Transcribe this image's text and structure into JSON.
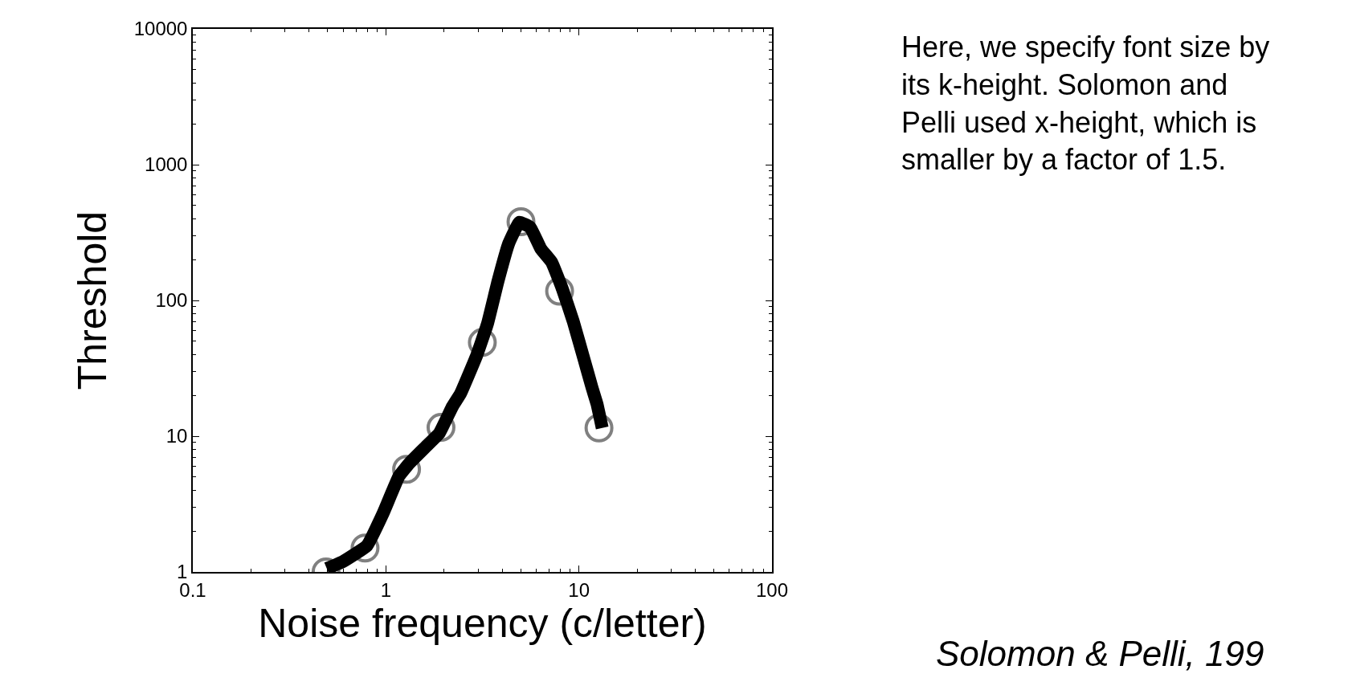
{
  "chart_data": {
    "type": "line",
    "xlabel": "Noise frequency (c/letter)",
    "ylabel": "Threshold",
    "log": "xy",
    "legend": false,
    "xlim": [
      0.1,
      100
    ],
    "xticks": [
      0.1,
      1,
      10,
      100
    ],
    "ylim": [
      1,
      10000
    ],
    "yticks": [
      1,
      10,
      100,
      1000,
      10000
    ],
    "series": [
      {
        "type": "scatter",
        "marker": "circle",
        "color": "#808080",
        "x": [
          0.49,
          0.78,
          1.28,
          1.93,
          3.16,
          5.01,
          7.94,
          12.7
        ],
        "values": [
          1.0,
          1.5,
          5.7,
          11.6,
          49,
          380,
          117,
          11.5
        ]
      },
      {
        "marker": "none",
        "line_style": "solid",
        "color": "#000000",
        "x": [
          0.494,
          0.598,
          0.798,
          0.966,
          1.17,
          1.33,
          1.61,
          1.89,
          2.21,
          2.44,
          2.95,
          3.36,
          3.81,
          4.33,
          4.92,
          5.6,
          6.35,
          7.23,
          8.2,
          9.33,
          10.6,
          11.7,
          12.4,
          13.2
        ],
        "values": [
          1.06,
          1.19,
          1.56,
          2.69,
          5.08,
          6.37,
          8.36,
          10.5,
          16.5,
          20.7,
          39.1,
          67.4,
          139,
          263,
          377,
          345,
          240,
          191,
          122,
          70.5,
          37.3,
          22.7,
          17.3,
          11.5
        ]
      }
    ],
    "annotations": [
      "Here, we specify font size by its k-height. Solomon and Pelli used x-height, which is smaller by a factor of 1.5.",
      "Solomon & Pelli, 199"
    ]
  }
}
